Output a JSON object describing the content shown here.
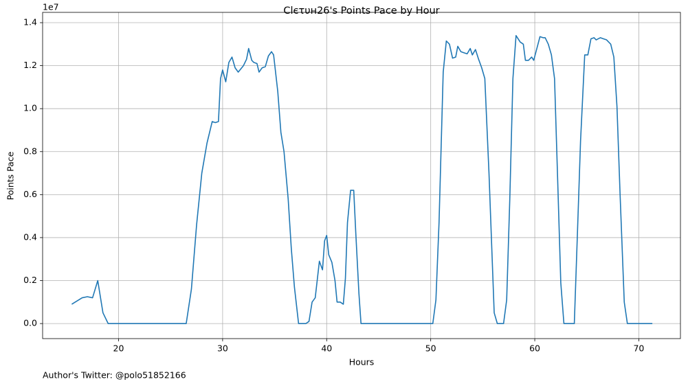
{
  "chart_data": {
    "type": "line",
    "title": "Clєτυн26's Points Pace by Hour",
    "x_label": "Hours",
    "y_label": "Points Pace",
    "y_offset_label": "1e7",
    "footnote": "Author's Twitter: @polo51852166",
    "grid": true,
    "xlim": [
      12.7,
      74.0
    ],
    "ylim": [
      -0.07,
      1.448
    ],
    "xticks": [
      20,
      30,
      40,
      50,
      60,
      70
    ],
    "yticks": [
      {
        "value": 0.0,
        "label": "0.0"
      },
      0.2,
      0.4,
      0.6,
      0.8,
      {
        "value": 1.0,
        "label": "1.0"
      },
      1.2,
      1.4
    ],
    "series": [
      {
        "name": "Points Pace",
        "color": "#1f77b4",
        "x": [
          15.5,
          16.5,
          17.0,
          17.5,
          18.0,
          18.5,
          19.0,
          26.5,
          27.0,
          27.5,
          28.0,
          28.5,
          29.0,
          29.3,
          29.6,
          29.8,
          30.0,
          30.3,
          30.6,
          30.9,
          31.2,
          31.5,
          32.0,
          32.3,
          32.5,
          32.8,
          33.0,
          33.3,
          33.5,
          33.8,
          34.1,
          34.4,
          34.7,
          34.9,
          35.3,
          35.6,
          35.9,
          36.3,
          36.6,
          36.9,
          37.3,
          38.0,
          38.3,
          38.6,
          38.9,
          39.3,
          39.6,
          39.8,
          40.0,
          40.2,
          40.5,
          40.8,
          41.0,
          41.3,
          41.6,
          41.8,
          42.0,
          42.3,
          42.6,
          42.8,
          43.1,
          43.3,
          50.2,
          50.5,
          50.8,
          51.2,
          51.5,
          51.8,
          52.1,
          52.4,
          52.6,
          52.9,
          53.2,
          53.5,
          53.8,
          54.0,
          54.3,
          54.6,
          54.9,
          55.2,
          55.6,
          55.9,
          56.1,
          56.4,
          57.0,
          57.3,
          57.6,
          57.9,
          58.2,
          58.6,
          58.9,
          59.1,
          59.4,
          59.7,
          59.9,
          60.2,
          60.5,
          60.8,
          61.0,
          61.3,
          61.6,
          61.9,
          62.2,
          62.5,
          62.8,
          63.8,
          64.1,
          64.4,
          64.8,
          65.1,
          65.4,
          65.7,
          65.9,
          66.3,
          66.6,
          66.9,
          67.3,
          67.6,
          67.9,
          68.2,
          68.6,
          68.9,
          71.3
        ],
        "values": [
          0.09,
          0.12,
          0.125,
          0.12,
          0.2,
          0.05,
          0.0,
          0.0,
          0.16,
          0.46,
          0.7,
          0.84,
          0.94,
          0.935,
          0.94,
          1.14,
          1.18,
          1.125,
          1.215,
          1.24,
          1.19,
          1.17,
          1.2,
          1.23,
          1.28,
          1.225,
          1.215,
          1.21,
          1.17,
          1.19,
          1.195,
          1.245,
          1.265,
          1.25,
          1.08,
          0.89,
          0.8,
          0.58,
          0.35,
          0.17,
          0.0,
          0.0,
          0.01,
          0.1,
          0.12,
          0.29,
          0.25,
          0.385,
          0.41,
          0.32,
          0.285,
          0.2,
          0.1,
          0.1,
          0.09,
          0.21,
          0.47,
          0.62,
          0.62,
          0.42,
          0.14,
          0.0,
          0.0,
          0.11,
          0.47,
          1.17,
          1.315,
          1.3,
          1.235,
          1.24,
          1.29,
          1.265,
          1.26,
          1.255,
          1.28,
          1.25,
          1.275,
          1.23,
          1.19,
          1.14,
          0.7,
          0.31,
          0.05,
          0.0,
          0.0,
          0.11,
          0.58,
          1.14,
          1.34,
          1.31,
          1.3,
          1.225,
          1.225,
          1.24,
          1.225,
          1.28,
          1.335,
          1.33,
          1.33,
          1.3,
          1.25,
          1.14,
          0.67,
          0.19,
          0.0,
          0.0,
          0.42,
          0.85,
          1.25,
          1.25,
          1.325,
          1.33,
          1.32,
          1.33,
          1.325,
          1.32,
          1.3,
          1.24,
          1.01,
          0.6,
          0.1,
          0.0,
          0.0
        ]
      }
    ]
  }
}
